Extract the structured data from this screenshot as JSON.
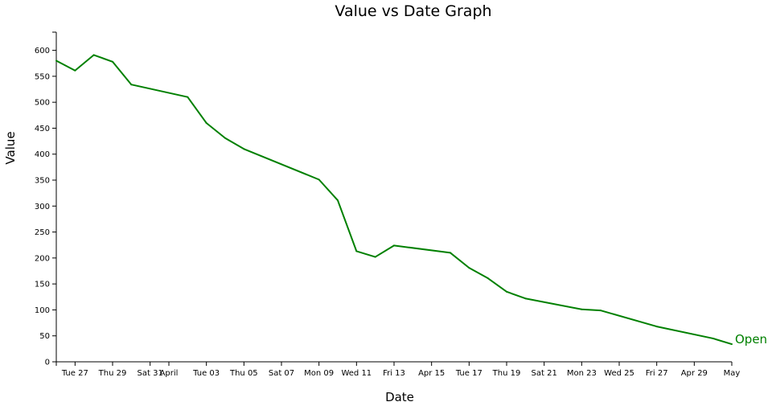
{
  "chart_data": {
    "type": "line",
    "title": "Value vs Date Graph",
    "xlabel": "Date",
    "ylabel": "Value",
    "ylim": [
      0,
      635
    ],
    "xlim": [
      "2018-03-26",
      "2018-05-01"
    ],
    "yticks": [
      0,
      50,
      100,
      150,
      200,
      250,
      300,
      350,
      400,
      450,
      500,
      550,
      600
    ],
    "xticks": [
      {
        "date": "2018-03-27",
        "label": "Tue 27"
      },
      {
        "date": "2018-03-29",
        "label": "Thu 29"
      },
      {
        "date": "2018-03-31",
        "label": "Sat 31"
      },
      {
        "date": "2018-04-01",
        "label": "April"
      },
      {
        "date": "2018-04-03",
        "label": "Tue 03"
      },
      {
        "date": "2018-04-05",
        "label": "Thu 05"
      },
      {
        "date": "2018-04-07",
        "label": "Sat 07"
      },
      {
        "date": "2018-04-09",
        "label": "Mon 09"
      },
      {
        "date": "2018-04-11",
        "label": "Wed 11"
      },
      {
        "date": "2018-04-13",
        "label": "Fri 13"
      },
      {
        "date": "2018-04-15",
        "label": "Apr 15"
      },
      {
        "date": "2018-04-17",
        "label": "Tue 17"
      },
      {
        "date": "2018-04-19",
        "label": "Thu 19"
      },
      {
        "date": "2018-04-21",
        "label": "Sat 21"
      },
      {
        "date": "2018-04-23",
        "label": "Mon 23"
      },
      {
        "date": "2018-04-25",
        "label": "Wed 25"
      },
      {
        "date": "2018-04-27",
        "label": "Fri 27"
      },
      {
        "date": "2018-04-29",
        "label": "Apr 29"
      },
      {
        "date": "2018-05-01",
        "label": "May"
      }
    ],
    "grid": false,
    "series": [
      {
        "name": "Open",
        "color": "#008000",
        "points": [
          {
            "x": "2018-03-26",
            "y": 580
          },
          {
            "x": "2018-03-27",
            "y": 561
          },
          {
            "x": "2018-03-28",
            "y": 591
          },
          {
            "x": "2018-03-29",
            "y": 578
          },
          {
            "x": "2018-03-30",
            "y": 534
          },
          {
            "x": "2018-04-02",
            "y": 510
          },
          {
            "x": "2018-04-03",
            "y": 460
          },
          {
            "x": "2018-04-04",
            "y": 431
          },
          {
            "x": "2018-04-05",
            "y": 410
          },
          {
            "x": "2018-04-09",
            "y": 351
          },
          {
            "x": "2018-04-10",
            "y": 311
          },
          {
            "x": "2018-04-11",
            "y": 213
          },
          {
            "x": "2018-04-12",
            "y": 202
          },
          {
            "x": "2018-04-13",
            "y": 224
          },
          {
            "x": "2018-04-16",
            "y": 210
          },
          {
            "x": "2018-04-17",
            "y": 181
          },
          {
            "x": "2018-04-18",
            "y": 161
          },
          {
            "x": "2018-04-19",
            "y": 135
          },
          {
            "x": "2018-04-20",
            "y": 122
          },
          {
            "x": "2018-04-23",
            "y": 101
          },
          {
            "x": "2018-04-24",
            "y": 99
          },
          {
            "x": "2018-04-27",
            "y": 68
          },
          {
            "x": "2018-04-30",
            "y": 45
          },
          {
            "x": "2018-05-01",
            "y": 34
          }
        ]
      }
    ]
  }
}
